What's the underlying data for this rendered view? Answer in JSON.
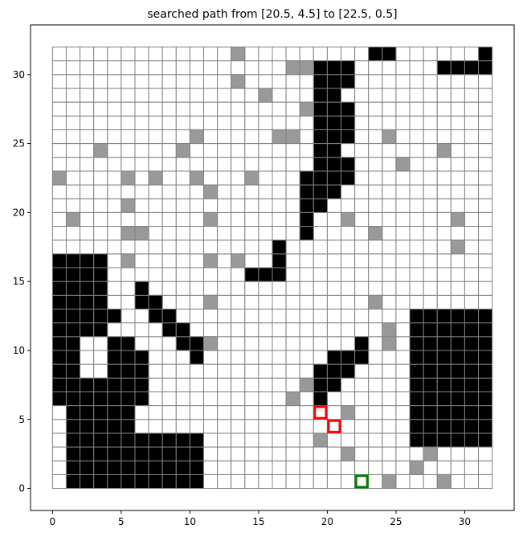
{
  "chart_data": {
    "type": "heatmap",
    "title": "searched path from [20.5, 4.5] to [22.5, 0.5]",
    "xlabel": "",
    "ylabel": "",
    "xlim": [
      -1.6,
      33.6
    ],
    "ylim": [
      -1.6,
      33.6
    ],
    "x_ticks": [
      0,
      5,
      10,
      15,
      20,
      25,
      30
    ],
    "y_ticks": [
      0,
      5,
      10,
      15,
      20,
      25,
      30
    ],
    "grid_size": 32,
    "cell_colors": {
      "free": "#ffffff",
      "obstacle": "#000000",
      "searched": "#999999",
      "grid_line": "#808080",
      "path": "#ff0000",
      "goal": "#008000"
    },
    "legend": "none",
    "obstacle_rows": [
      [
        23,
        25,
        31,
        32
      ],
      [
        19,
        22,
        28,
        32
      ],
      [
        19,
        22
      ],
      [
        19,
        21
      ],
      [
        19,
        22
      ],
      [
        19,
        22
      ],
      [
        19,
        22
      ],
      [
        19,
        21
      ],
      [
        19,
        22
      ],
      [
        18,
        22
      ],
      [
        18,
        21
      ],
      [
        18,
        20
      ],
      [
        18,
        19
      ],
      [
        18,
        19
      ],
      [
        16,
        17
      ],
      [
        0,
        4,
        16,
        17
      ],
      [
        0,
        4,
        14,
        17
      ],
      [
        0,
        4,
        6,
        7
      ],
      [
        0,
        4,
        6,
        8
      ],
      [
        0,
        5,
        7,
        9,
        26,
        32
      ],
      [
        0,
        4,
        8,
        10,
        26,
        32
      ],
      [
        0,
        2,
        4,
        6,
        9,
        11,
        22,
        23,
        26,
        32
      ],
      [
        0,
        2,
        4,
        7,
        10,
        11,
        20,
        23,
        26,
        32
      ],
      [
        0,
        2,
        4,
        7,
        19,
        22,
        26,
        32
      ],
      [
        0,
        7,
        19,
        21,
        26,
        32
      ],
      [
        0,
        7,
        19,
        20,
        26,
        32
      ],
      [
        1,
        6,
        26,
        32
      ],
      [
        1,
        6,
        26,
        32
      ],
      [
        1,
        11,
        26,
        32
      ],
      [
        1,
        11
      ],
      [
        1,
        11
      ],
      [
        1,
        11
      ]
    ],
    "searched_cells": [
      [
        13,
        31
      ],
      [
        23,
        31
      ],
      [
        17,
        30
      ],
      [
        18,
        30
      ],
      [
        13,
        29
      ],
      [
        15,
        28
      ],
      [
        18,
        27
      ],
      [
        10,
        25
      ],
      [
        16,
        25
      ],
      [
        17,
        25
      ],
      [
        24,
        25
      ],
      [
        3,
        24
      ],
      [
        9,
        24
      ],
      [
        28,
        24
      ],
      [
        25,
        23
      ],
      [
        0,
        22
      ],
      [
        5,
        22
      ],
      [
        7,
        22
      ],
      [
        10,
        22
      ],
      [
        14,
        22
      ],
      [
        11,
        21
      ],
      [
        5,
        20
      ],
      [
        1,
        19
      ],
      [
        11,
        19
      ],
      [
        21,
        19
      ],
      [
        29,
        19
      ],
      [
        5,
        18
      ],
      [
        6,
        18
      ],
      [
        23,
        18
      ],
      [
        29,
        17
      ],
      [
        5,
        16
      ],
      [
        11,
        16
      ],
      [
        13,
        16
      ],
      [
        11,
        13
      ],
      [
        23,
        13
      ],
      [
        24,
        11
      ],
      [
        11,
        10
      ],
      [
        24,
        10
      ],
      [
        18,
        7
      ],
      [
        17,
        6
      ],
      [
        21,
        5
      ],
      [
        19,
        3
      ],
      [
        21,
        2
      ],
      [
        27,
        2
      ],
      [
        26,
        1
      ],
      [
        24,
        0
      ],
      [
        28,
        0
      ]
    ],
    "path_cells": [
      [
        19,
        5
      ],
      [
        20,
        4
      ]
    ],
    "goal_cell": [
      22,
      0
    ]
  }
}
